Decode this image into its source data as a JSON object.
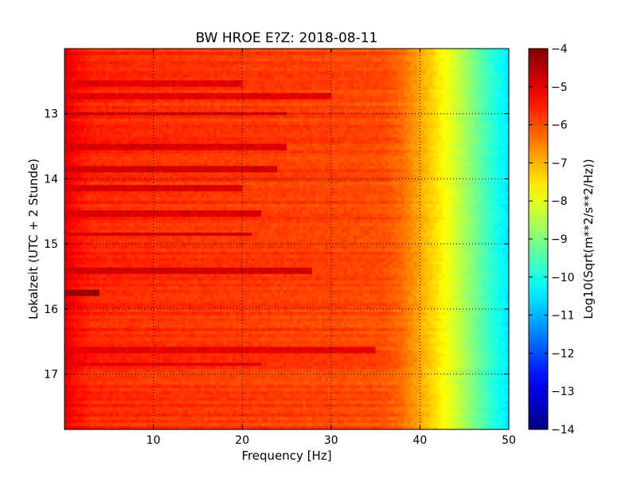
{
  "chart_data": {
    "type": "heatmap",
    "title": "BW HROE E?Z: 2018-08-11",
    "xlabel": "Frequency [Hz]",
    "ylabel": "Lokalzeit (UTC + 2 Stunde)",
    "colorbar_label": "Log10(Sqrt(m**2/s**2/Hz))",
    "xlim": [
      0,
      50
    ],
    "ylim": [
      17.85,
      12.0
    ],
    "y_inverted": true,
    "clim": [
      -14,
      -4
    ],
    "colormap": "jet",
    "grid": true,
    "x_ticks": [
      10,
      20,
      30,
      40,
      50
    ],
    "y_ticks": [
      13,
      14,
      15,
      16,
      17
    ],
    "colorbar_ticks": [
      -4,
      -5,
      -6,
      -7,
      -8,
      -9,
      -10,
      -11,
      -12,
      -13,
      -14
    ],
    "spectrum_profile": {
      "frequency": [
        0,
        1,
        3,
        10,
        20,
        30,
        36,
        38,
        40,
        42,
        44,
        46,
        48,
        50
      ],
      "level": [
        -4.9,
        -5.3,
        -5.6,
        -5.7,
        -5.8,
        -5.9,
        -6.0,
        -6.3,
        -6.9,
        -7.5,
        -8.2,
        -9.0,
        -9.8,
        -10.5
      ]
    },
    "strong_bands": [
      {
        "time": 12.55,
        "fmax": 20,
        "level": -5.0
      },
      {
        "time": 12.75,
        "fmax": 30,
        "level": -5.0
      },
      {
        "time": 13.0,
        "fmax": 25,
        "level": -4.9
      },
      {
        "time": 13.5,
        "fmax": 25,
        "level": -4.9
      },
      {
        "time": 13.85,
        "fmax": 24,
        "level": -4.8
      },
      {
        "time": 14.15,
        "fmax": 20,
        "level": -4.9
      },
      {
        "time": 14.55,
        "fmax": 22,
        "level": -4.9
      },
      {
        "time": 14.85,
        "fmax": 21,
        "level": -4.8
      },
      {
        "time": 15.4,
        "fmax": 28,
        "level": -4.8
      },
      {
        "time": 15.75,
        "fmax": 4,
        "level": -4.3
      },
      {
        "time": 16.65,
        "fmax": 35,
        "level": -5.0
      },
      {
        "time": 16.85,
        "fmax": 22,
        "level": -5.0
      }
    ]
  }
}
